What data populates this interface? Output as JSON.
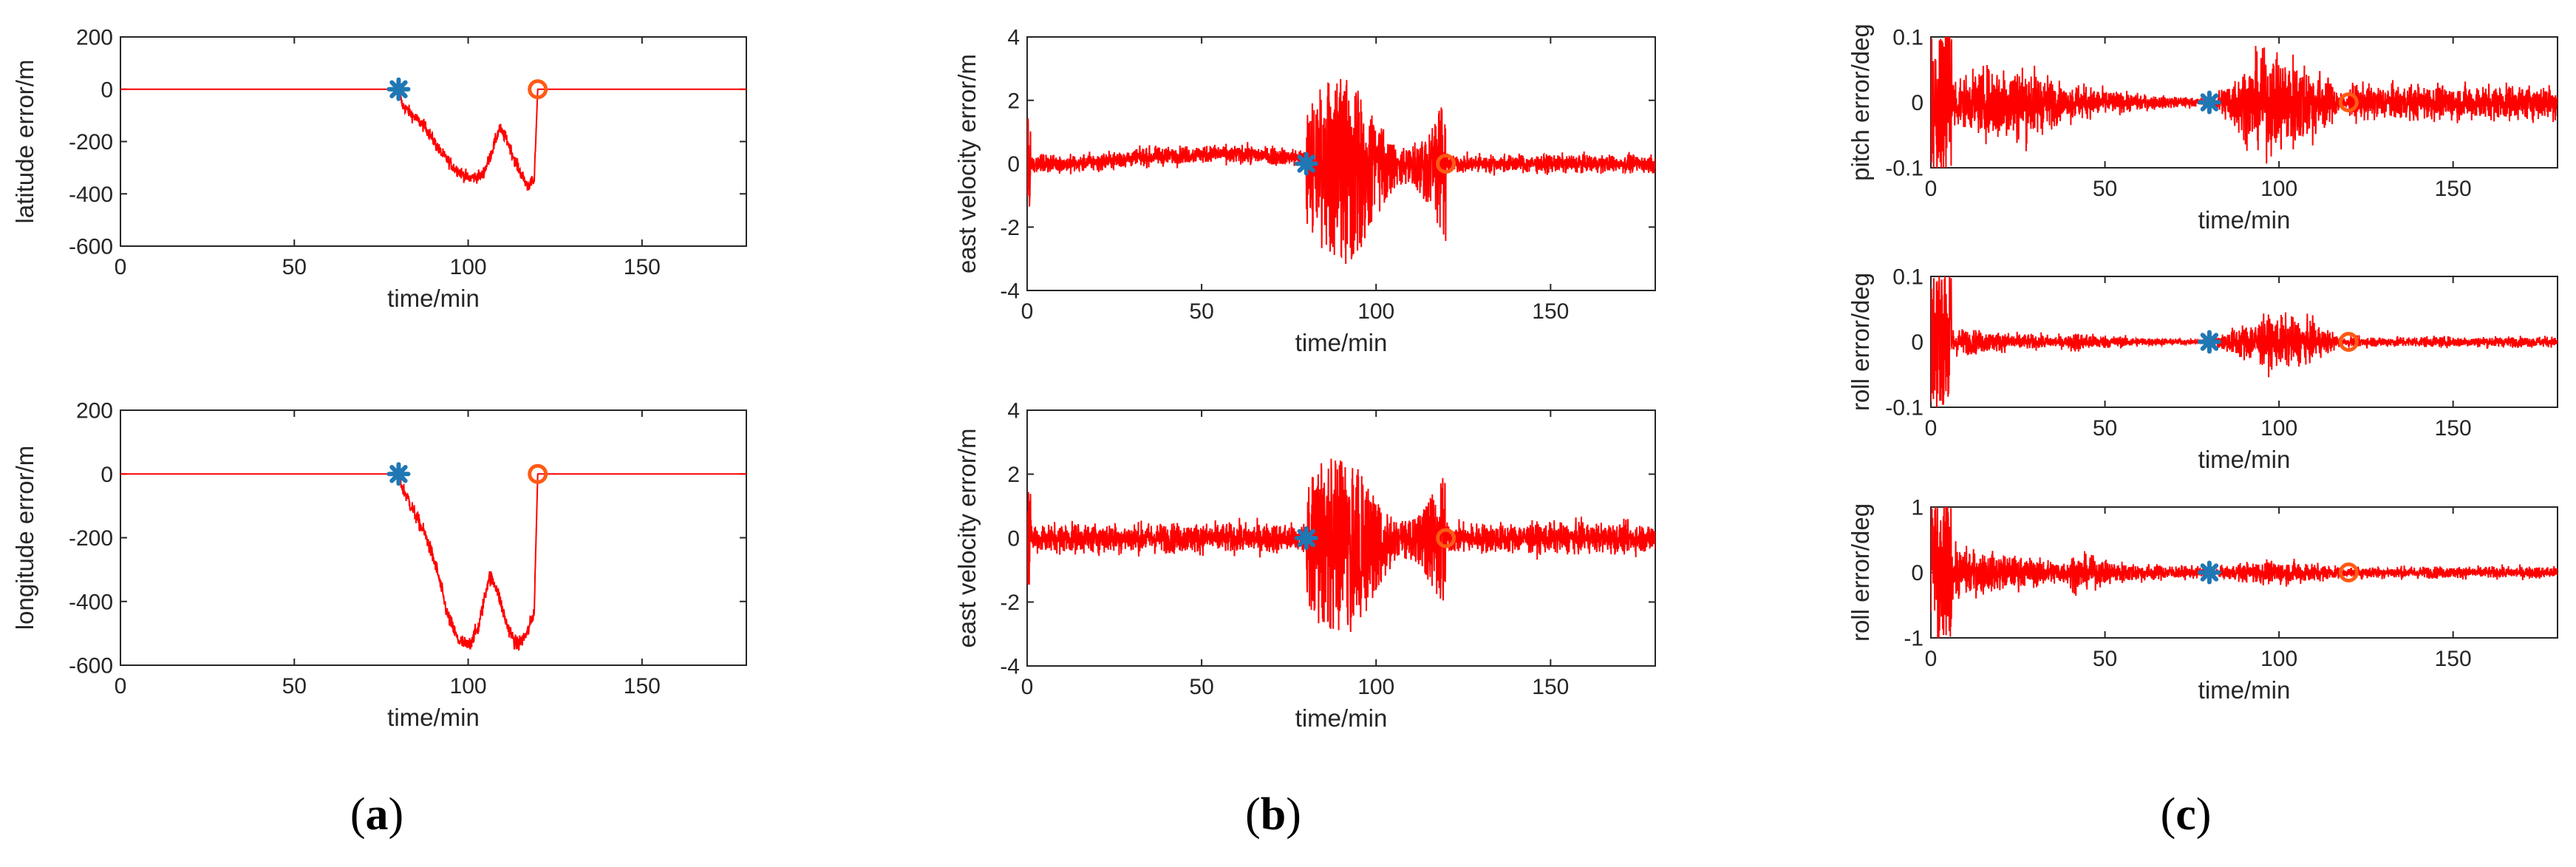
{
  "colors": {
    "signal": "#ff0000",
    "start_marker": "#1f77b4",
    "end_marker": "#ff5a14",
    "axis": "#262626"
  },
  "panel_labels": [
    {
      "open": "(",
      "letter": "a",
      "close": ")"
    },
    {
      "open": "(",
      "letter": "b",
      "close": ")"
    },
    {
      "open": "(",
      "letter": "c",
      "close": ")"
    }
  ],
  "chart_data": [
    {
      "type": "line",
      "panel": "a",
      "ylabel": "latitude error/m",
      "xlabel": "time/min",
      "xlim": [
        0,
        180
      ],
      "ylim": [
        -600,
        200
      ],
      "xticks": [
        0,
        50,
        100,
        150
      ],
      "yticks": [
        200,
        0,
        -200,
        -400,
        -600
      ],
      "series": [
        {
          "name": "latitude error",
          "points": [
            [
              0,
              0
            ],
            [
              80,
              0
            ],
            [
              81,
              -60
            ],
            [
              84,
              -100
            ],
            [
              88,
              -150
            ],
            [
              92,
              -240
            ],
            [
              96,
              -300
            ],
            [
              100,
              -340
            ],
            [
              104,
              -330
            ],
            [
              106,
              -270
            ],
            [
              109,
              -150
            ],
            [
              111,
              -190
            ],
            [
              114,
              -290
            ],
            [
              117,
              -370
            ],
            [
              119,
              -350
            ],
            [
              120,
              0
            ],
            [
              180,
              0
            ]
          ]
        }
      ],
      "markers": [
        {
          "name": "start",
          "shape": "asterisk",
          "x": 80,
          "y": 0
        },
        {
          "name": "end",
          "shape": "circle",
          "x": 120,
          "y": 0
        }
      ]
    },
    {
      "type": "line",
      "panel": "a",
      "ylabel": "longitude error/m",
      "xlabel": "time/min",
      "xlim": [
        0,
        180
      ],
      "ylim": [
        -600,
        200
      ],
      "xticks": [
        0,
        50,
        100,
        150
      ],
      "yticks": [
        200,
        0,
        -200,
        -400,
        -600
      ],
      "series": [
        {
          "name": "longitude error",
          "points": [
            [
              0,
              0
            ],
            [
              80,
              0
            ],
            [
              81,
              -40
            ],
            [
              84,
              -110
            ],
            [
              88,
              -200
            ],
            [
              91,
              -300
            ],
            [
              94,
              -440
            ],
            [
              97,
              -520
            ],
            [
              100,
              -540
            ],
            [
              103,
              -480
            ],
            [
              106,
              -320
            ],
            [
              108,
              -350
            ],
            [
              111,
              -470
            ],
            [
              114,
              -540
            ],
            [
              117,
              -500
            ],
            [
              119,
              -430
            ],
            [
              120,
              0
            ],
            [
              180,
              0
            ]
          ]
        }
      ],
      "markers": [
        {
          "name": "start",
          "shape": "asterisk",
          "x": 80,
          "y": 0
        },
        {
          "name": "end",
          "shape": "circle",
          "x": 120,
          "y": 0
        }
      ]
    },
    {
      "type": "line",
      "panel": "b",
      "ylabel": "east velocity error/m",
      "xlabel": "time/min",
      "xlim": [
        0,
        180
      ],
      "ylim": [
        -4,
        4
      ],
      "xticks": [
        0,
        50,
        100,
        150
      ],
      "yticks": [
        4,
        2,
        0,
        -2,
        -4
      ],
      "noise": {
        "quiet_amplitude": 0.3,
        "burst_start": 80,
        "burst_end": 120,
        "burst_amplitude_min": -3.3,
        "burst_amplitude_max": 2.8,
        "drift_peak": 0.3
      },
      "markers": [
        {
          "name": "start",
          "shape": "asterisk",
          "x": 80,
          "y": 0
        },
        {
          "name": "end",
          "shape": "circle",
          "x": 120,
          "y": 0
        }
      ]
    },
    {
      "type": "line",
      "panel": "b",
      "ylabel": "east velocity error/m",
      "xlabel": "time/min",
      "xlim": [
        0,
        180
      ],
      "ylim": [
        -4,
        4
      ],
      "xticks": [
        0,
        50,
        100,
        150
      ],
      "yticks": [
        4,
        2,
        0,
        -2,
        -4
      ],
      "noise": {
        "quiet_amplitude": 0.5,
        "burst_start": 80,
        "burst_end": 120,
        "burst_amplitude_min": -3.3,
        "burst_amplitude_max": 2.8,
        "drift_peak": 0
      },
      "markers": [
        {
          "name": "start",
          "shape": "asterisk",
          "x": 80,
          "y": 0
        },
        {
          "name": "end",
          "shape": "circle",
          "x": 120,
          "y": 0
        }
      ]
    },
    {
      "type": "line",
      "panel": "c",
      "ylabel": "pitch error/deg",
      "xlabel": "time/min",
      "xlim": [
        0,
        180
      ],
      "ylim": [
        -0.1,
        0.1
      ],
      "xticks": [
        0,
        50,
        100,
        150
      ],
      "yticks": [
        0.1,
        0,
        -0.1
      ],
      "noise": {
        "initial_amplitude": 0.1,
        "mid_amplitude": 0.04,
        "min_amplitude": 0.003,
        "burst_start": 80,
        "burst_end": 120,
        "burst_amplitude": 0.07,
        "tail_amplitude": 0.02
      },
      "markers": [
        {
          "name": "start",
          "shape": "asterisk",
          "x": 80,
          "y": 0
        },
        {
          "name": "end",
          "shape": "circle",
          "x": 120,
          "y": 0
        }
      ]
    },
    {
      "type": "line",
      "panel": "c",
      "ylabel": "roll error/deg",
      "xlabel": "time/min",
      "xlim": [
        0,
        180
      ],
      "ylim": [
        -0.1,
        0.1
      ],
      "xticks": [
        0,
        50,
        100,
        150
      ],
      "yticks": [
        0.1,
        0,
        -0.1
      ],
      "noise": {
        "initial_amplitude": 0.1,
        "mid_amplitude": 0.02,
        "min_amplitude": 0.002,
        "burst_start": 80,
        "burst_end": 120,
        "burst_amplitude": 0.035,
        "tail_amplitude": 0.005
      },
      "markers": [
        {
          "name": "start",
          "shape": "asterisk",
          "x": 80,
          "y": 0
        },
        {
          "name": "end",
          "shape": "circle",
          "x": 120,
          "y": 0
        }
      ]
    },
    {
      "type": "line",
      "panel": "c",
      "ylabel": "roll error/deg",
      "xlabel": "time/min",
      "xlim": [
        0,
        180
      ],
      "ylim": [
        -1,
        1
      ],
      "xticks": [
        0,
        50,
        100,
        150
      ],
      "yticks": [
        1,
        0,
        -1
      ],
      "noise": {
        "initial_amplitude": 1.0,
        "mid_amplitude": 0.35,
        "min_amplitude": 0.05,
        "burst_start": 80,
        "burst_end": 120,
        "burst_amplitude": 0.12,
        "tail_amplitude": 0.03
      },
      "markers": [
        {
          "name": "start",
          "shape": "asterisk",
          "x": 80,
          "y": 0
        },
        {
          "name": "end",
          "shape": "circle",
          "x": 120,
          "y": 0
        }
      ]
    }
  ]
}
